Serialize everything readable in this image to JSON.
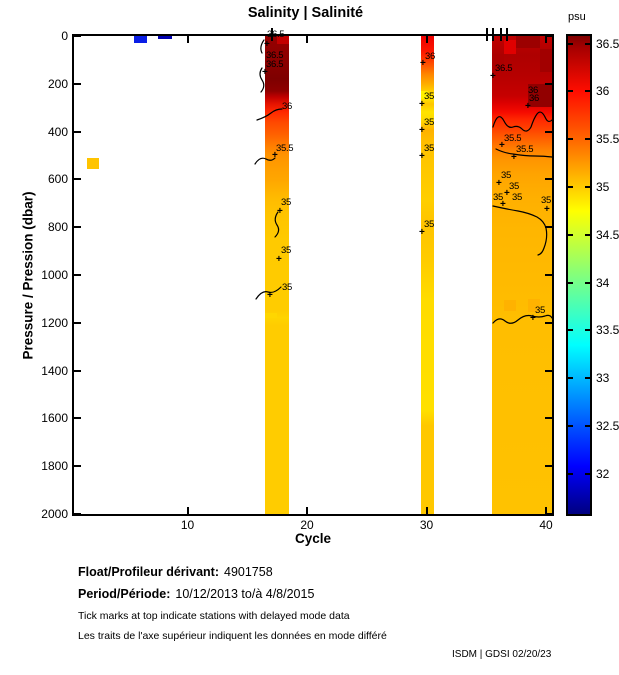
{
  "title": "Salinity | Salinité",
  "axes": {
    "xlabel": "Cycle",
    "ylabel": "Pressure / Pression (dbar)",
    "xlim": [
      0.5,
      40.5
    ],
    "ylim": [
      0,
      2000
    ],
    "x_ticks": [
      10,
      20,
      30,
      40
    ],
    "y_ticks": [
      0,
      200,
      400,
      600,
      800,
      1000,
      1200,
      1400,
      1600,
      1800,
      2000
    ]
  },
  "colorbar": {
    "unit": "psu",
    "range": [
      31.58,
      36.58
    ],
    "ticks": [
      36.5,
      36,
      35.5,
      35,
      34.5,
      34,
      33.5,
      33,
      32.5,
      32
    ],
    "stops": [
      {
        "v": 36.58,
        "c": "#800000"
      },
      {
        "v": 36.45,
        "c": "#A80000"
      },
      {
        "v": 36.0,
        "c": "#FF0D00"
      },
      {
        "v": 35.5,
        "c": "#FF6600"
      },
      {
        "v": 35.0,
        "c": "#FFCC00"
      },
      {
        "v": 34.75,
        "c": "#FFFF00"
      },
      {
        "v": 34.5,
        "c": "#D1FF2E"
      },
      {
        "v": 34.0,
        "c": "#75FF8A"
      },
      {
        "v": 33.5,
        "c": "#1CFFE3"
      },
      {
        "v": 33.35,
        "c": "#00FFFF"
      },
      {
        "v": 33.0,
        "c": "#00B8FF"
      },
      {
        "v": 32.5,
        "c": "#0052FF"
      },
      {
        "v": 32.08,
        "c": "#0000FF"
      },
      {
        "v": 31.58,
        "c": "#000080"
      }
    ]
  },
  "chart_data": {
    "type": "heatmap",
    "x_field": "cycle",
    "y_field": "pressure_dbar",
    "value_field": "salinity_psu",
    "delayed_mode_tick_cycles": [
      17.1,
      35.1,
      35.6,
      36.2,
      36.7
    ],
    "bands": [
      {
        "name": "cycles-17-18",
        "c0": 16.5,
        "c1": 18.5,
        "stops": [
          [
            0,
            "#960000"
          ],
          [
            100,
            "#8C0000"
          ],
          [
            180,
            "#7E0000"
          ],
          [
            230,
            "#8E0000"
          ],
          [
            255,
            "#C00000"
          ],
          [
            285,
            "#E61400"
          ],
          [
            318,
            "#FF2800"
          ],
          [
            360,
            "#FF4800"
          ],
          [
            410,
            "#FF6000"
          ],
          [
            460,
            "#FF7E00"
          ],
          [
            495,
            "#FF9200"
          ],
          [
            550,
            "#FF9E00"
          ],
          [
            600,
            "#FFA600"
          ],
          [
            645,
            "#FFB200"
          ],
          [
            685,
            "#FFBC00"
          ],
          [
            750,
            "#FFC400"
          ],
          [
            855,
            "#FFCA00"
          ],
          [
            1150,
            "#FFCC00"
          ],
          [
            1180,
            "#FFD400"
          ],
          [
            1210,
            "#FFCC00"
          ],
          [
            2000,
            "#FFCC00"
          ]
        ]
      },
      {
        "name": "cycle-30",
        "c0": 29.5,
        "c1": 30.6,
        "stops": [
          [
            0,
            "#EE0000"
          ],
          [
            60,
            "#FA1400"
          ],
          [
            92,
            "#FF3000"
          ],
          [
            126,
            "#FF5A00"
          ],
          [
            160,
            "#FF8600"
          ],
          [
            200,
            "#FFAC00"
          ],
          [
            234,
            "#FFD200"
          ],
          [
            260,
            "#FFE600"
          ],
          [
            285,
            "#FFC600"
          ],
          [
            318,
            "#FFE400"
          ],
          [
            350,
            "#FFDA00"
          ],
          [
            395,
            "#FFB200"
          ],
          [
            445,
            "#FFBE00"
          ],
          [
            520,
            "#FFC600"
          ],
          [
            690,
            "#FFCE00"
          ],
          [
            780,
            "#FFC400"
          ],
          [
            940,
            "#FFCC00"
          ],
          [
            1105,
            "#FFDC00"
          ],
          [
            1565,
            "#FFE000"
          ],
          [
            1630,
            "#FFC800"
          ],
          [
            2000,
            "#FFC800"
          ]
        ]
      },
      {
        "name": "cycles-36-40",
        "c0": 35.5,
        "c1": 40.5,
        "stops": [
          [
            0,
            "#C00000"
          ],
          [
            80,
            "#AE0000"
          ],
          [
            165,
            "#B60000"
          ],
          [
            250,
            "#C60000"
          ],
          [
            280,
            "#DC0000"
          ],
          [
            318,
            "#F50A00"
          ],
          [
            350,
            "#FF2800"
          ],
          [
            395,
            "#FF4600"
          ],
          [
            435,
            "#FF6400"
          ],
          [
            477,
            "#FF8200"
          ],
          [
            520,
            "#FF9600"
          ],
          [
            570,
            "#FFA200"
          ],
          [
            625,
            "#FFAA00"
          ],
          [
            686,
            "#FFB000"
          ],
          [
            812,
            "#FFB600"
          ],
          [
            1020,
            "#FFBA00"
          ],
          [
            1190,
            "#FFBE00"
          ],
          [
            2000,
            "#FFC200"
          ]
        ]
      }
    ],
    "cells": [
      {
        "c0": 17.5,
        "c1": 18.5,
        "p0": 0,
        "p1": 35,
        "color": "#C30000"
      },
      {
        "c0": 36.5,
        "c1": 37.5,
        "p0": 15,
        "p1": 75,
        "color": "#E00000"
      },
      {
        "c0": 37.5,
        "c1": 39.5,
        "p0": 0,
        "p1": 50,
        "color": "#9C0000"
      },
      {
        "c0": 39.5,
        "c1": 40.5,
        "p0": 55,
        "p1": 150,
        "color": "#A20000"
      },
      {
        "c0": 35.5,
        "c1": 36.5,
        "p0": 75,
        "p1": 145,
        "color": "#AC0000"
      },
      {
        "c0": 38.5,
        "c1": 40.5,
        "p0": 200,
        "p1": 295,
        "color": "#920000"
      },
      {
        "c0": 36.5,
        "c1": 37.5,
        "p0": 1105,
        "p1": 1150,
        "color": "#FFB200"
      },
      {
        "c0": 38.5,
        "c1": 39.5,
        "p0": 1100,
        "p1": 1155,
        "color": "#FFB200"
      },
      {
        "c0": 16.5,
        "c1": 17.5,
        "p0": 1158,
        "p1": 1182,
        "color": "#FFD600"
      },
      {
        "c0": 29.5,
        "c1": 30.1,
        "p0": 230,
        "p1": 262,
        "color": "#FFF000"
      }
    ],
    "marks": [
      {
        "name": "cycle-6-surface",
        "c0": 5.5,
        "c1": 6.6,
        "p0": 0,
        "p1": 28,
        "color": "#0A1EE6"
      },
      {
        "name": "cycle-8-surface",
        "c0": 7.5,
        "c1": 8.7,
        "p0": 0,
        "p1": 13,
        "color": "#0000B0"
      },
      {
        "name": "cycle-2-mid",
        "c0": 1.6,
        "c1": 2.6,
        "p0": 510,
        "p1": 555,
        "color": "#FFC400"
      }
    ],
    "contour_labels": [
      {
        "t": "36.5",
        "x": 267,
        "y": 30
      },
      {
        "t": "36.5",
        "x": 266,
        "y": 51
      },
      {
        "t": "36.5",
        "x": 266,
        "y": 60
      },
      {
        "t": "36",
        "x": 282,
        "y": 102
      },
      {
        "t": "35.5",
        "x": 276,
        "y": 144
      },
      {
        "t": "35",
        "x": 281,
        "y": 198
      },
      {
        "t": "35",
        "x": 281,
        "y": 246
      },
      {
        "t": "35",
        "x": 282,
        "y": 283
      },
      {
        "t": "36",
        "x": 425,
        "y": 52
      },
      {
        "t": "35",
        "x": 424,
        "y": 92
      },
      {
        "t": "35",
        "x": 424,
        "y": 118
      },
      {
        "t": "35",
        "x": 424,
        "y": 144
      },
      {
        "t": "35",
        "x": 424,
        "y": 220
      },
      {
        "t": "36.5",
        "x": 495,
        "y": 64
      },
      {
        "t": "36",
        "x": 528,
        "y": 86
      },
      {
        "t": "36",
        "x": 529,
        "y": 94
      },
      {
        "t": "35.5",
        "x": 504,
        "y": 134
      },
      {
        "t": "35.5",
        "x": 516,
        "y": 145
      },
      {
        "t": "35",
        "x": 501,
        "y": 171
      },
      {
        "t": "35",
        "x": 509,
        "y": 182
      },
      {
        "t": "35",
        "x": 493,
        "y": 193
      },
      {
        "t": "35",
        "x": 512,
        "y": 193
      },
      {
        "t": "35",
        "x": 541,
        "y": 196
      },
      {
        "t": "35",
        "x": 535,
        "y": 306
      }
    ],
    "contour_pluses": [
      {
        "x": 264,
        "y": 41
      },
      {
        "x": 262,
        "y": 69
      },
      {
        "x": 272,
        "y": 152
      },
      {
        "x": 277,
        "y": 208
      },
      {
        "x": 276,
        "y": 256
      },
      {
        "x": 267,
        "y": 292
      },
      {
        "x": 420,
        "y": 60
      },
      {
        "x": 419,
        "y": 101
      },
      {
        "x": 419,
        "y": 127
      },
      {
        "x": 419,
        "y": 153
      },
      {
        "x": 419,
        "y": 229
      },
      {
        "x": 490,
        "y": 73
      },
      {
        "x": 525,
        "y": 103
      },
      {
        "x": 499,
        "y": 142
      },
      {
        "x": 511,
        "y": 154
      },
      {
        "x": 496,
        "y": 180
      },
      {
        "x": 504,
        "y": 190
      },
      {
        "x": 500,
        "y": 201
      },
      {
        "x": 544,
        "y": 206
      },
      {
        "x": 530,
        "y": 315
      }
    ],
    "contour_paths": [
      "M264,40 q-5,7 -2,13",
      "M262,68 q-4,6 0,12 q4,6 -1,12",
      "M257,120 q9,-3 14,-7 q5,-4 11,-4",
      "M255,164 q5,-8 11,-5 q5,3 9,-1",
      "M278,212 q-5,7 -1,13 q4,6 -2,12",
      "M256,299 q6,-9 12,-7 q6,2 13,-5",
      "M493,127 q5,-17 11,-6 q4,8 9,6 q5,-2 9,2 q5,5 9,-2 q3,-9 6,-13 q4,-5 8,3 q3,7 7,3",
      "M496,149 q8,4 17,5 q12,2 22,2 q9,0 17,1",
      "M493,206 q13,3 25,5 q11,2 19,6 q7,4 9,11 q2,10 -2,20 q-2,6 -6,7",
      "M493,323 q6,-7 12,-2 q6,5 13,-1 q7,-6 14,-4 q7,2 13,0 q5,-2 7,2"
    ]
  },
  "footer": {
    "float_label": "Float/Profileur dérivant:",
    "float_value": "4901758",
    "period_label": "Period/Période:",
    "period_value": "10/12/2013  to/à  4/8/2015",
    "note_en": "Tick marks at top indicate stations with delayed mode data",
    "note_fr": "Les traits de l'axe supérieur indiquent les données en mode différé",
    "credit": "ISDM | GDSI  02/20/23"
  }
}
